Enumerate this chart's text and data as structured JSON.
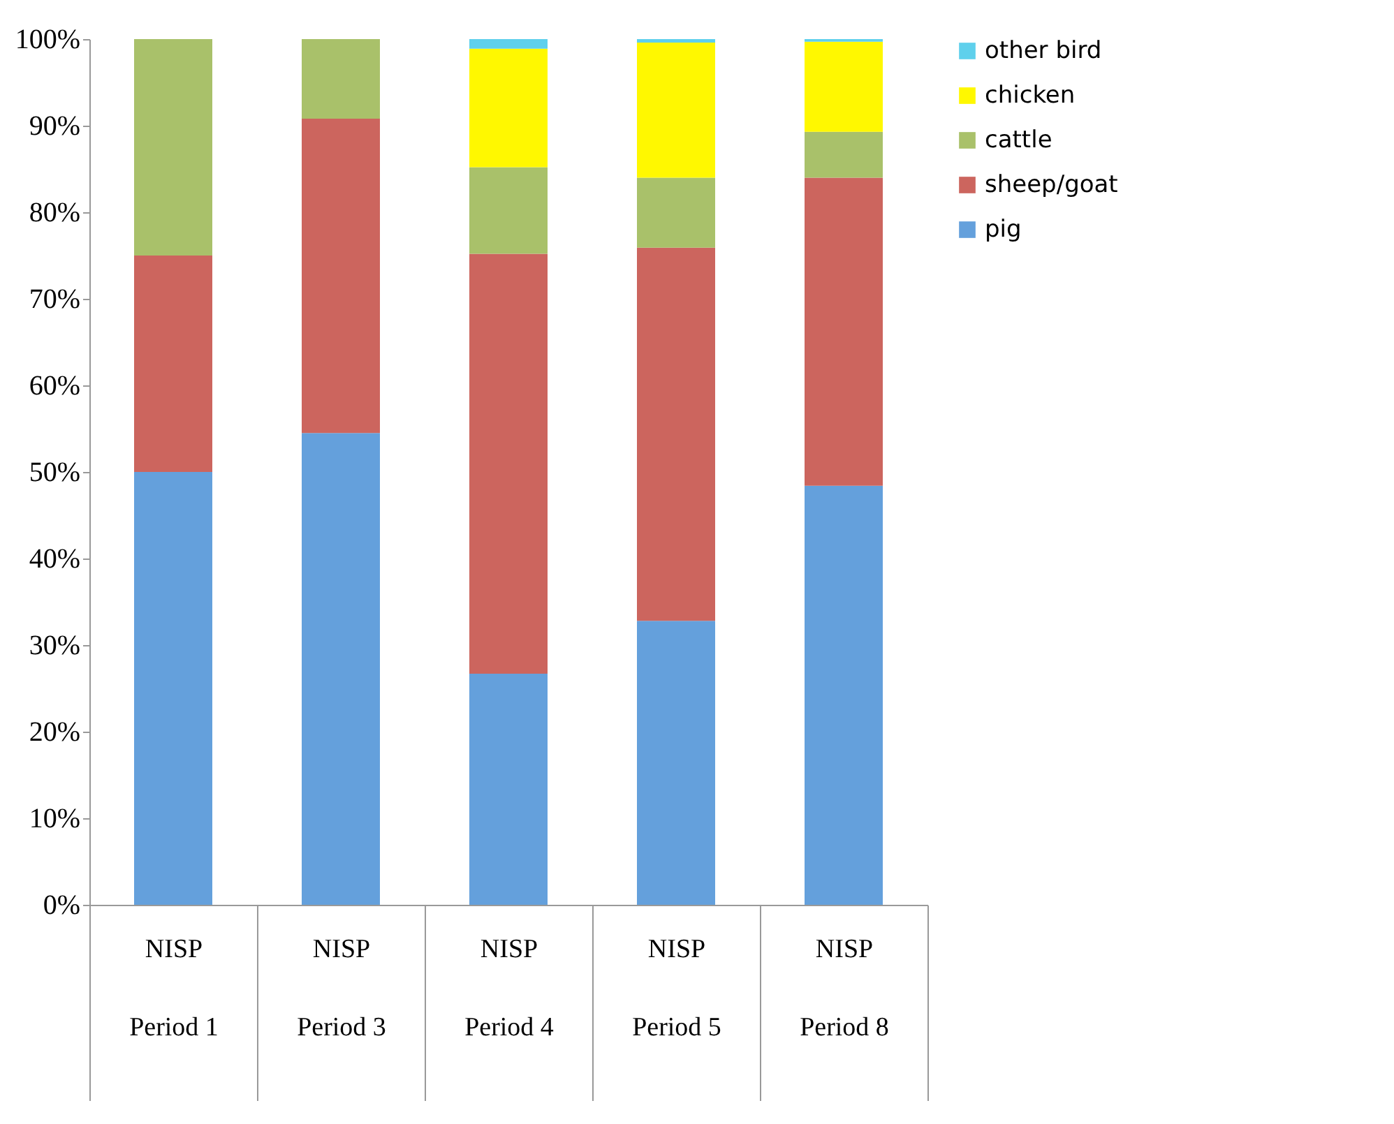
{
  "chart_data": {
    "type": "bar",
    "stacked": true,
    "categories": [
      "NISP\nPeriod 1",
      "NISP\nPeriod 3",
      "NISP\nPeriod 4",
      "NISP\nPeriod 5",
      "NISP\nPeriod 8"
    ],
    "series": [
      {
        "name": "pig",
        "color": "#64a0dc",
        "values": [
          50,
          54.5,
          26.7,
          32.8,
          48.4
        ]
      },
      {
        "name": "sheep/goat",
        "color": "#cc655e",
        "values": [
          25,
          36.3,
          48.5,
          43.1,
          35.6
        ]
      },
      {
        "name": "cattle",
        "color": "#a9c16a",
        "values": [
          25,
          9.2,
          10.0,
          8.1,
          5.3
        ]
      },
      {
        "name": "chicken",
        "color": "#fff800",
        "values": [
          0,
          0,
          13.7,
          15.6,
          10.4
        ]
      },
      {
        "name": "other bird",
        "color": "#5fd0ec",
        "values": [
          0,
          0,
          1.1,
          0.4,
          0.3
        ]
      }
    ],
    "ylim": [
      0,
      100
    ],
    "yticks": [
      {
        "value": 0,
        "label": "0%"
      },
      {
        "value": 10,
        "label": "10%"
      },
      {
        "value": 20,
        "label": "20%"
      },
      {
        "value": 30,
        "label": "30%"
      },
      {
        "value": 40,
        "label": "40%"
      },
      {
        "value": 50,
        "label": "50%"
      },
      {
        "value": 60,
        "label": "60%"
      },
      {
        "value": 70,
        "label": "70%"
      },
      {
        "value": 80,
        "label": "80%"
      },
      {
        "value": 90,
        "label": "90%"
      },
      {
        "value": 100,
        "label": "100%"
      }
    ],
    "grid": false,
    "legend": "right"
  }
}
